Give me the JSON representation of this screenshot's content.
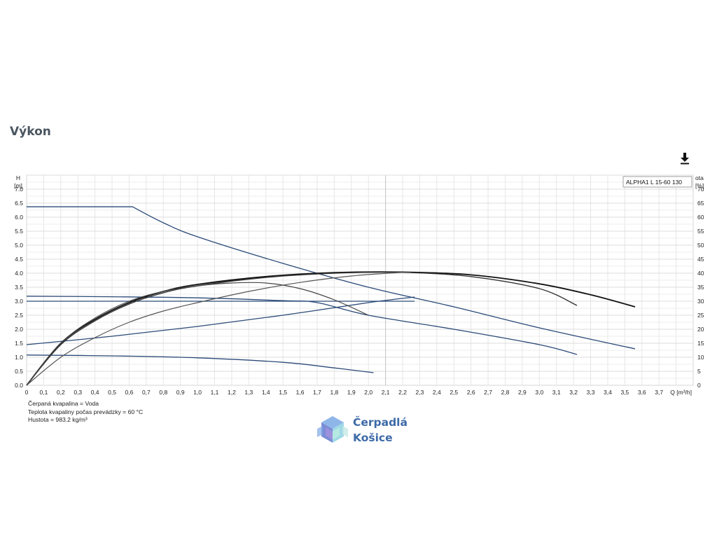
{
  "page": {
    "title": "Výkon"
  },
  "toolbar": {
    "download_icon": "download-icon"
  },
  "fluid_info": [
    "Čerpaná kvapalina = Voda",
    "Teplota kvapaliny počas prevádzky = 60 °C",
    "Hustota = 983.2 kg/m³"
  ],
  "brand": {
    "line1": "Čerpadlá",
    "line2": "Košice",
    "logo_icon": "hexagon-cube-logo"
  },
  "chart_data": {
    "type": "line",
    "legend": {
      "text": "ALPHA1 L 15-60  130",
      "placement": "top-right"
    },
    "x_axis": {
      "label": "Q [m³/h]",
      "range": [
        0,
        3.9
      ],
      "ticks": [
        "0",
        "0,1",
        "0,2",
        "0,3",
        "0,4",
        "0,5",
        "0,6",
        "0,7",
        "0,8",
        "0,9",
        "1,0",
        "1,1",
        "1,2",
        "1,3",
        "1,4",
        "1,5",
        "1,6",
        "1,7",
        "1,8",
        "1,9",
        "2,0",
        "2,1",
        "2,2",
        "2,3",
        "2,4",
        "2,5",
        "2,6",
        "2,7",
        "2,8",
        "2,9",
        "3,0",
        "3,1",
        "3,2",
        "3,3",
        "3,4",
        "3,5",
        "3,6",
        "3,7"
      ]
    },
    "y_axis_left": {
      "label_line1": "H",
      "label_line2": "[m]",
      "range": [
        0,
        7.5
      ],
      "ticks": [
        "0.0",
        "0.5",
        "1.0",
        "1.5",
        "2.0",
        "2.5",
        "3.0",
        "3.5",
        "4.0",
        "4.5",
        "5.0",
        "5.5",
        "6.0",
        "6.5",
        "7.0"
      ]
    },
    "y_axis_right": {
      "label_line1": "ota",
      "label_line2": "[%]",
      "range": [
        0,
        75
      ],
      "ticks": [
        "0",
        "5",
        "10",
        "15",
        "20",
        "25",
        "30",
        "35",
        "40",
        "45",
        "50",
        "55",
        "60",
        "65",
        "70"
      ]
    },
    "grid": true,
    "series": [
      {
        "axis": "left",
        "color": "#2b4a78",
        "width": 1.3,
        "x": [
          0,
          0.62,
          0.8,
          1.0,
          1.5,
          2.0,
          2.5,
          3.0,
          3.56
        ],
        "y": [
          6.37,
          6.37,
          5.8,
          5.3,
          4.35,
          3.5,
          2.8,
          2.05,
          1.3
        ]
      },
      {
        "axis": "left",
        "color": "#2b4a78",
        "width": 1.3,
        "x": [
          0,
          0.5,
          1.0,
          1.5,
          1.7,
          2.0,
          2.5,
          3.0,
          3.22
        ],
        "y": [
          3.18,
          3.16,
          3.12,
          3.02,
          2.95,
          2.5,
          2.0,
          1.45,
          1.1
        ]
      },
      {
        "axis": "left",
        "color": "#2b4a78",
        "width": 1.3,
        "x": [
          0,
          0.5,
          1.0,
          1.5,
          1.8,
          2.03
        ],
        "y": [
          1.08,
          1.05,
          0.98,
          0.82,
          0.62,
          0.45
        ]
      },
      {
        "axis": "left",
        "color": "#2b4a78",
        "width": 1.3,
        "x": [
          0,
          2.27
        ],
        "y": [
          3.0,
          3.0
        ]
      },
      {
        "axis": "left",
        "color": "#2b4a78",
        "width": 1.3,
        "x": [
          0,
          0.5,
          1.0,
          1.5,
          2.0,
          2.27
        ],
        "y": [
          1.45,
          1.75,
          2.1,
          2.5,
          2.95,
          3.15
        ]
      },
      {
        "axis": "right",
        "color": "#111111",
        "width": 1.8,
        "x": [
          0,
          0.2,
          0.4,
          0.6,
          0.8,
          1.0,
          1.4,
          1.8,
          2.2,
          2.6,
          3.0,
          3.3,
          3.56
        ],
        "y": [
          0,
          15,
          23.5,
          29.5,
          33.5,
          36,
          38.8,
          40.2,
          40.4,
          39.4,
          36.2,
          32.3,
          28
        ]
      },
      {
        "axis": "right",
        "color": "#333333",
        "width": 1.4,
        "x": [
          0,
          0.2,
          0.4,
          0.6,
          0.8,
          1.0,
          1.4,
          1.8,
          2.2,
          2.6,
          3.0,
          3.22
        ],
        "y": [
          0,
          14.5,
          23,
          29,
          33,
          35.5,
          38.5,
          40,
          40.3,
          38.8,
          34.5,
          28.5
        ]
      },
      {
        "axis": "right",
        "color": "#444444",
        "width": 1.2,
        "x": [
          0,
          0.2,
          0.4,
          0.6,
          0.8,
          1.0,
          1.2,
          1.4,
          1.6,
          1.8,
          2.0
        ],
        "y": [
          0,
          15,
          24,
          30,
          33.5,
          35.5,
          36.5,
          36.5,
          34.5,
          30.5,
          25
        ]
      },
      {
        "axis": "right",
        "color": "#555555",
        "width": 1.2,
        "x": [
          0,
          0.2,
          0.4,
          0.6,
          0.8,
          1.0,
          1.3,
          1.6,
          1.9,
          2.2,
          2.25
        ],
        "y": [
          0,
          10,
          17,
          22.5,
          26.5,
          29.5,
          33.5,
          36.7,
          39,
          40.3,
          40.3
        ]
      }
    ]
  }
}
